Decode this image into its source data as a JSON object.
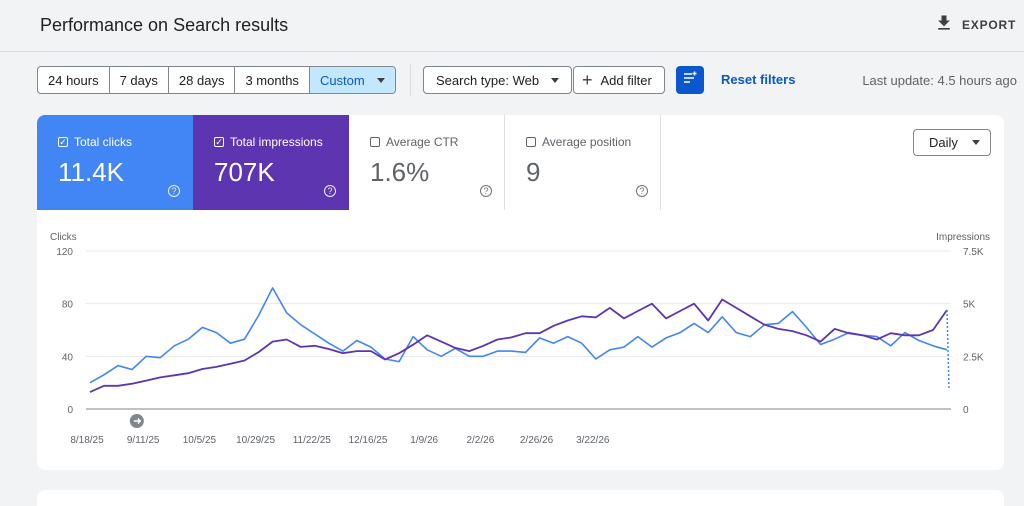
{
  "header": {
    "title": "Performance on Search results",
    "export_label": "EXPORT"
  },
  "toolbar": {
    "date_ranges": [
      "24 hours",
      "7 days",
      "28 days",
      "3 months",
      "Custom"
    ],
    "active_range": "Custom",
    "search_type": "Search type: Web",
    "add_filter": "Add filter",
    "reset_filters": "Reset filters",
    "last_update": "Last update: 4.5 hours ago"
  },
  "metrics": [
    {
      "label": "Total clicks",
      "value": "11.4K",
      "checked": true,
      "color": "#4285f4"
    },
    {
      "label": "Total impressions",
      "value": "707K",
      "checked": true,
      "color": "#5e35b1"
    },
    {
      "label": "Average CTR",
      "value": "1.6%",
      "checked": false
    },
    {
      "label": "Average position",
      "value": "9",
      "checked": false
    }
  ],
  "period": "Daily",
  "chart_data": {
    "type": "line",
    "left_axis_label": "Clicks",
    "right_axis_label": "Impressions",
    "left_ticks": [
      "120",
      "80",
      "40",
      "0"
    ],
    "right_ticks": [
      "7.5K",
      "5K",
      "2.5K",
      "0"
    ],
    "ylim_left": [
      0,
      120
    ],
    "ylim_right": [
      0,
      7500
    ],
    "x_tick_labels": [
      "8/18/25",
      "9/11/25",
      "10/5/25",
      "10/29/25",
      "11/22/25",
      "12/16/25",
      "1/9/26",
      "2/2/26",
      "2/26/26",
      "3/22/26"
    ],
    "series": [
      {
        "name": "Total clicks",
        "color": "#4285f4",
        "axis": "left",
        "points": [
          [
            0,
            20
          ],
          [
            6,
            26
          ],
          [
            12,
            33
          ],
          [
            18,
            30
          ],
          [
            24,
            40
          ],
          [
            30,
            39
          ],
          [
            36,
            48
          ],
          [
            42,
            53
          ],
          [
            48,
            62
          ],
          [
            54,
            58
          ],
          [
            60,
            50
          ],
          [
            66,
            53
          ],
          [
            72,
            71
          ],
          [
            78,
            92
          ],
          [
            84,
            73
          ],
          [
            90,
            64
          ],
          [
            96,
            57
          ],
          [
            102,
            50
          ],
          [
            108,
            44
          ],
          [
            114,
            52
          ],
          [
            120,
            47
          ],
          [
            126,
            38
          ],
          [
            132,
            36
          ],
          [
            138,
            55
          ],
          [
            144,
            45
          ],
          [
            150,
            40
          ],
          [
            156,
            46
          ],
          [
            162,
            40
          ],
          [
            168,
            40
          ],
          [
            174,
            44
          ],
          [
            180,
            44
          ],
          [
            186,
            43
          ],
          [
            192,
            54
          ],
          [
            198,
            50
          ],
          [
            204,
            55
          ],
          [
            210,
            50
          ],
          [
            216,
            38
          ],
          [
            222,
            45
          ],
          [
            228,
            47
          ],
          [
            234,
            55
          ],
          [
            240,
            47
          ],
          [
            246,
            54
          ],
          [
            252,
            58
          ],
          [
            258,
            65
          ],
          [
            264,
            58
          ],
          [
            270,
            70
          ],
          [
            276,
            58
          ],
          [
            282,
            55
          ],
          [
            288,
            64
          ],
          [
            294,
            65
          ],
          [
            300,
            74
          ],
          [
            306,
            62
          ],
          [
            312,
            49
          ],
          [
            318,
            53
          ],
          [
            324,
            58
          ],
          [
            330,
            56
          ],
          [
            336,
            55
          ],
          [
            342,
            48
          ],
          [
            348,
            58
          ],
          [
            354,
            52
          ],
          [
            360,
            48
          ],
          [
            366,
            45
          ]
        ]
      },
      {
        "name": "Total impressions",
        "color": "#5e35b1",
        "axis": "right",
        "points": [
          [
            0,
            800
          ],
          [
            6,
            1100
          ],
          [
            12,
            1100
          ],
          [
            18,
            1200
          ],
          [
            24,
            1350
          ],
          [
            30,
            1500
          ],
          [
            36,
            1600
          ],
          [
            42,
            1700
          ],
          [
            48,
            1900
          ],
          [
            54,
            2000
          ],
          [
            60,
            2150
          ],
          [
            66,
            2300
          ],
          [
            72,
            2700
          ],
          [
            78,
            3200
          ],
          [
            84,
            3300
          ],
          [
            90,
            2950
          ],
          [
            96,
            3000
          ],
          [
            102,
            2850
          ],
          [
            108,
            2650
          ],
          [
            114,
            2750
          ],
          [
            120,
            2750
          ],
          [
            126,
            2350
          ],
          [
            132,
            2650
          ],
          [
            138,
            3050
          ],
          [
            144,
            3500
          ],
          [
            150,
            3200
          ],
          [
            156,
            2900
          ],
          [
            162,
            2750
          ],
          [
            168,
            3000
          ],
          [
            174,
            3300
          ],
          [
            180,
            3400
          ],
          [
            186,
            3600
          ],
          [
            192,
            3600
          ],
          [
            198,
            3950
          ],
          [
            204,
            4200
          ],
          [
            210,
            4400
          ],
          [
            216,
            4350
          ],
          [
            222,
            4800
          ],
          [
            228,
            4300
          ],
          [
            234,
            4650
          ],
          [
            240,
            5000
          ],
          [
            246,
            4300
          ],
          [
            252,
            4650
          ],
          [
            258,
            5000
          ],
          [
            264,
            4200
          ],
          [
            270,
            5200
          ],
          [
            276,
            4800
          ],
          [
            282,
            4400
          ],
          [
            288,
            4000
          ],
          [
            294,
            3800
          ],
          [
            300,
            3700
          ],
          [
            306,
            3500
          ],
          [
            312,
            3200
          ],
          [
            318,
            3800
          ],
          [
            324,
            3600
          ],
          [
            330,
            3500
          ],
          [
            336,
            3300
          ],
          [
            342,
            3600
          ],
          [
            348,
            3500
          ],
          [
            354,
            3500
          ],
          [
            360,
            3750
          ],
          [
            366,
            4700
          ]
        ]
      }
    ]
  }
}
